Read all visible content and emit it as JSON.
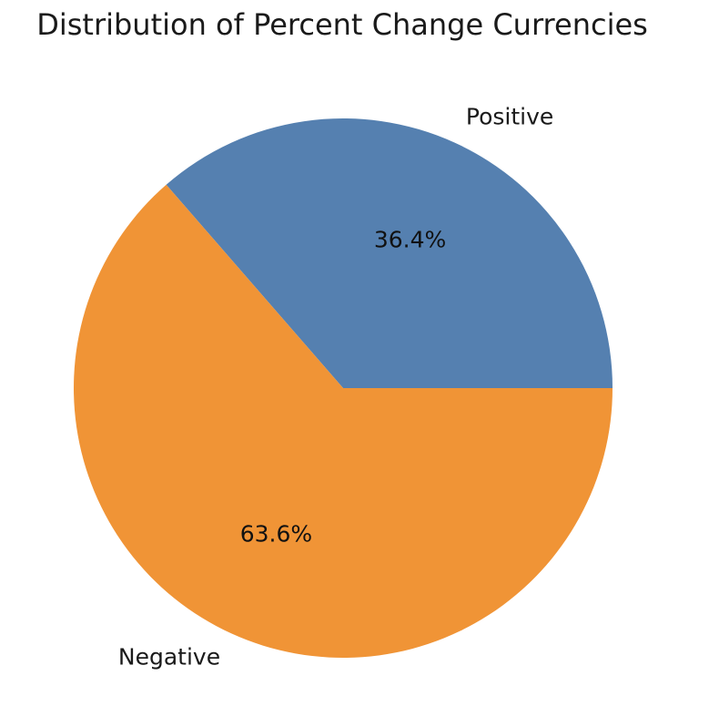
{
  "chart_data": {
    "type": "pie",
    "title": "Distribution of Percent Change Currencies",
    "labels": [
      "Positive",
      "Negative"
    ],
    "values": [
      36.4,
      63.6
    ],
    "value_labels": [
      "36.4%",
      "63.6%"
    ],
    "colors": [
      "#5580b0",
      "#f09436"
    ],
    "start_angle_deg": 0,
    "direction": "counterclockwise"
  }
}
